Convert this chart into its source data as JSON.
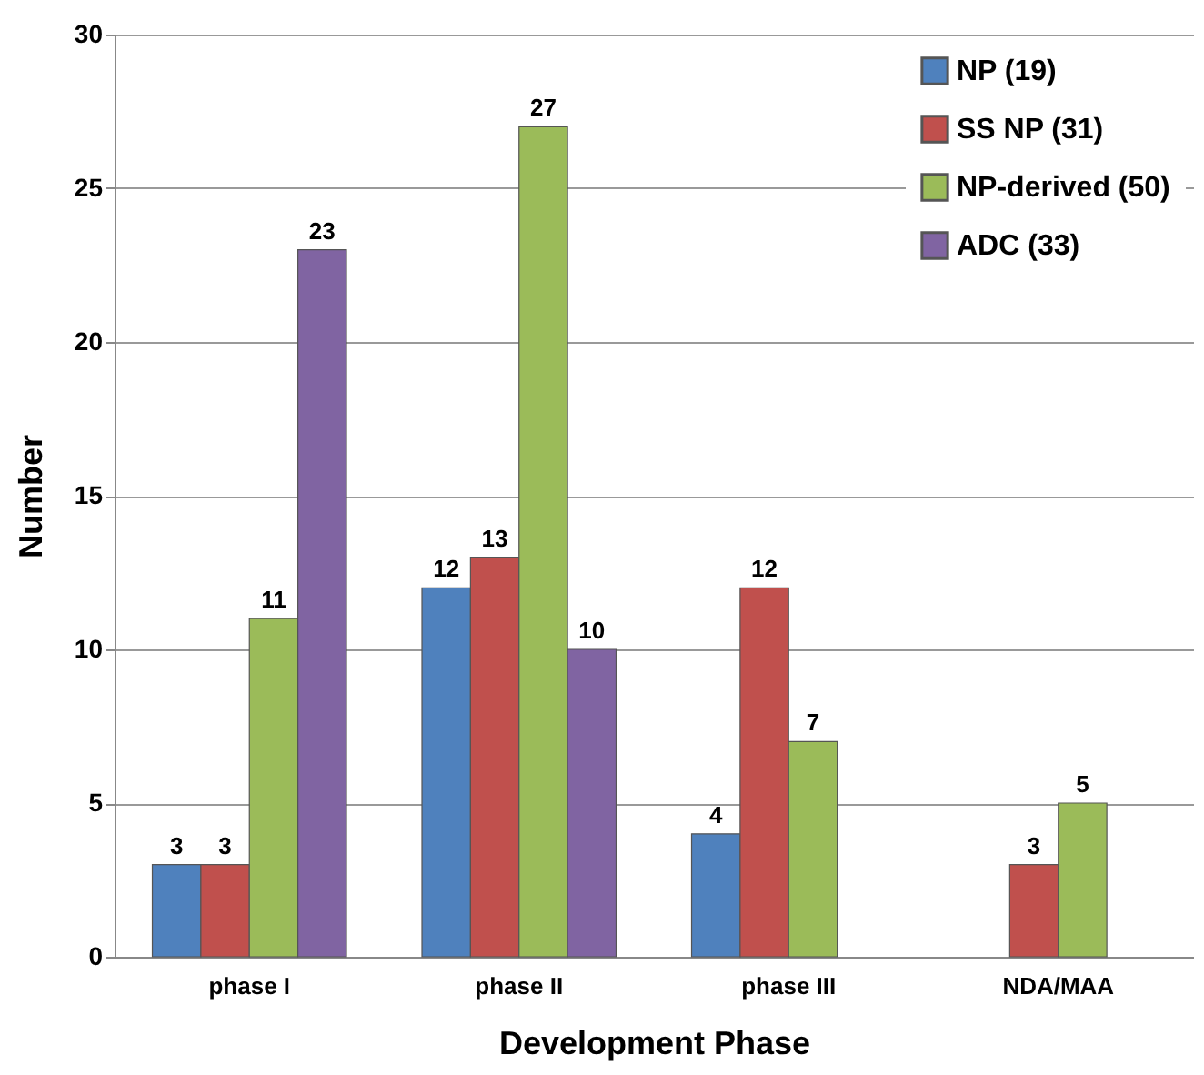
{
  "chart_data": {
    "type": "bar",
    "xlabel": "Development Phase",
    "ylabel": "Number",
    "categories": [
      "phase I",
      "phase II",
      "phase III",
      "NDA/MAA"
    ],
    "series": [
      {
        "name": "NP (19)",
        "color": "#4f81bd",
        "values": [
          3,
          12,
          4,
          null
        ]
      },
      {
        "name": "SS NP (31)",
        "color": "#c0504d",
        "values": [
          3,
          13,
          12,
          3
        ]
      },
      {
        "name": "NP-derived (50)",
        "color": "#9bbb59",
        "values": [
          11,
          27,
          7,
          5
        ]
      },
      {
        "name": "ADC (33)",
        "color": "#8064a2",
        "values": [
          23,
          10,
          null,
          null
        ]
      }
    ],
    "ylim": [
      0,
      30
    ],
    "yticks": [
      0,
      5,
      10,
      15,
      20,
      25,
      30
    ],
    "grid": "y",
    "legend": "top right",
    "data_labels": true
  }
}
